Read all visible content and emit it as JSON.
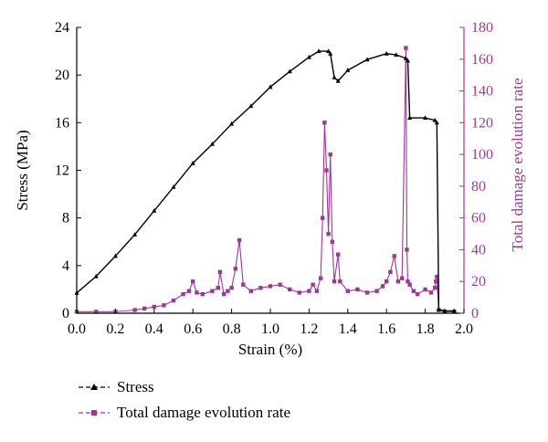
{
  "chart_data": {
    "type": "line",
    "xlabel": "Strain (%)",
    "ylabel": "Stress (MPa)",
    "y2label": "Total damage evolution rate",
    "xlim": [
      0.0,
      2.0
    ],
    "ylim": [
      0,
      24
    ],
    "y2lim": [
      0,
      180
    ],
    "xticks": [
      "0.0",
      "0.2",
      "0.4",
      "0.6",
      "0.8",
      "1.0",
      "1.2",
      "1.4",
      "1.6",
      "1.8",
      "2.0"
    ],
    "yticks": [
      "0",
      "4",
      "8",
      "12",
      "16",
      "20",
      "24"
    ],
    "y2ticks": [
      "0",
      "20",
      "40",
      "60",
      "80",
      "100",
      "120",
      "140",
      "160",
      "180"
    ],
    "grid": false,
    "legend_position": "bottom-left",
    "colors": {
      "stress": "#000000",
      "damage": "#9b3a96"
    },
    "series": [
      {
        "name": "Stress",
        "axis": "left",
        "marker": "triangle",
        "x": [
          0.0,
          0.1,
          0.2,
          0.3,
          0.4,
          0.5,
          0.6,
          0.7,
          0.8,
          0.9,
          1.0,
          1.1,
          1.2,
          1.25,
          1.3,
          1.31,
          1.33,
          1.35,
          1.4,
          1.5,
          1.6,
          1.65,
          1.7,
          1.71,
          1.72,
          1.8,
          1.85,
          1.86,
          1.87,
          1.9,
          1.95
        ],
        "y": [
          1.7,
          3.1,
          4.8,
          6.6,
          8.6,
          10.6,
          12.6,
          14.2,
          15.9,
          17.4,
          19.0,
          20.3,
          21.5,
          22.0,
          22.0,
          21.8,
          19.8,
          19.5,
          20.4,
          21.3,
          21.8,
          21.7,
          21.4,
          21.2,
          16.4,
          16.4,
          16.2,
          16.0,
          0.3,
          0.2,
          0.2
        ]
      },
      {
        "name": "Total damage evolution rate",
        "axis": "right",
        "marker": "square",
        "x": [
          0.0,
          0.1,
          0.2,
          0.3,
          0.35,
          0.4,
          0.45,
          0.5,
          0.55,
          0.58,
          0.6,
          0.62,
          0.65,
          0.7,
          0.73,
          0.74,
          0.76,
          0.78,
          0.8,
          0.82,
          0.84,
          0.86,
          0.9,
          0.95,
          1.0,
          1.05,
          1.1,
          1.15,
          1.2,
          1.22,
          1.24,
          1.26,
          1.27,
          1.28,
          1.29,
          1.3,
          1.31,
          1.32,
          1.33,
          1.35,
          1.36,
          1.4,
          1.45,
          1.5,
          1.55,
          1.58,
          1.6,
          1.62,
          1.64,
          1.66,
          1.68,
          1.7,
          1.705,
          1.71,
          1.72,
          1.74,
          1.76,
          1.8,
          1.83,
          1.85,
          1.855,
          1.86,
          1.87,
          1.9,
          1.95
        ],
        "y": [
          1,
          1,
          1,
          2,
          3,
          4,
          5,
          8,
          12,
          14,
          20,
          13,
          12,
          14,
          16,
          26,
          12,
          14,
          16,
          28,
          46,
          18,
          14,
          16,
          17,
          18,
          15,
          13,
          14,
          18,
          14,
          22,
          60,
          120,
          90,
          50,
          100,
          45,
          20,
          37,
          20,
          14,
          15,
          13,
          14,
          17,
          20,
          26,
          36,
          20,
          22,
          167,
          40,
          20,
          18,
          14,
          12,
          15,
          13,
          16,
          20,
          23,
          2,
          1,
          1
        ]
      }
    ]
  }
}
